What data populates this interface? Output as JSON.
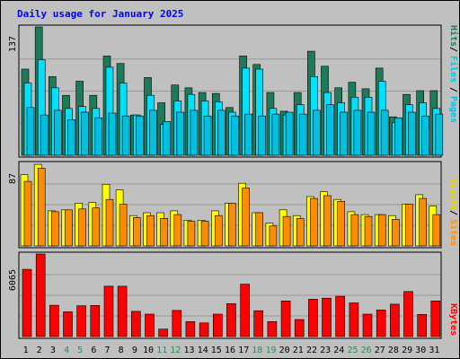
{
  "colors": {
    "background": "#c0c0c0",
    "panel_bg": "#c0c0c0",
    "title": "#0000ff",
    "hits": "#1e7b5a",
    "files": "#00e0ff",
    "pages": "#00c0e0",
    "visits": "#ffff00",
    "sites": "#ff8c00",
    "kbytes": "#ff0000",
    "weekend_label": "#2e8b57",
    "weekday_label": "#000000",
    "grid": "#999999"
  },
  "chart_data": [
    {
      "type": "bar",
      "title": "Daily usage for January 2025",
      "ylabel_parts": [
        "Pages",
        "Files",
        "Hits"
      ],
      "ymax_label": "137",
      "ylim": [
        0,
        137
      ],
      "categories": [
        "1",
        "2",
        "3",
        "4",
        "5",
        "6",
        "7",
        "8",
        "9",
        "10",
        "11",
        "12",
        "13",
        "14",
        "15",
        "16",
        "17",
        "18",
        "19",
        "20",
        "21",
        "22",
        "23",
        "24",
        "25",
        "26",
        "27",
        "28",
        "29",
        "30",
        "31"
      ],
      "weekend_days": [
        "4",
        "5",
        "11",
        "12",
        "18",
        "19",
        "25",
        "26"
      ],
      "series": [
        {
          "name": "Hits",
          "values": [
            92,
            137,
            84,
            64,
            79,
            64,
            106,
            98,
            43,
            83,
            56,
            75,
            72,
            67,
            66,
            51,
            106,
            97,
            67,
            47,
            67,
            111,
            95,
            72,
            78,
            71,
            93,
            41,
            65,
            69,
            69
          ]
        },
        {
          "name": "Files",
          "values": [
            77,
            102,
            72,
            50,
            52,
            50,
            94,
            77,
            43,
            64,
            33,
            58,
            65,
            58,
            57,
            46,
            93,
            92,
            50,
            43,
            54,
            84,
            67,
            56,
            62,
            62,
            79,
            35,
            54,
            56,
            50
          ]
        },
        {
          "name": "Pages",
          "values": [
            51,
            43,
            48,
            38,
            46,
            40,
            45,
            42,
            42,
            48,
            36,
            46,
            48,
            42,
            48,
            42,
            44,
            42,
            44,
            46,
            44,
            48,
            54,
            46,
            48,
            46,
            48,
            40,
            46,
            42,
            44
          ]
        }
      ]
    },
    {
      "type": "bar",
      "ylabel_parts": [
        "Sites",
        "Visits"
      ],
      "ymax_label": "87",
      "ylim": [
        0,
        87
      ],
      "series": [
        {
          "name": "Visits",
          "values": [
            75,
            86,
            37,
            38,
            45,
            46,
            65,
            59,
            32,
            35,
            35,
            37,
            27,
            27,
            37,
            45,
            66,
            35,
            24,
            38,
            32,
            52,
            57,
            49,
            36,
            33,
            33,
            32,
            44,
            54,
            42
          ]
        },
        {
          "name": "Sites",
          "values": [
            68,
            82,
            36,
            38,
            39,
            40,
            49,
            44,
            30,
            32,
            29,
            33,
            26,
            26,
            32,
            45,
            61,
            35,
            21,
            31,
            29,
            50,
            53,
            47,
            33,
            31,
            33,
            28,
            44,
            50,
            33
          ]
        }
      ]
    },
    {
      "type": "bar",
      "ylabel_parts": [
        "KBytes"
      ],
      "ymax_label": "6065",
      "ylim": [
        0,
        6065
      ],
      "series": [
        {
          "name": "KBytes",
          "values": [
            4940,
            6065,
            2300,
            1820,
            2270,
            2290,
            3700,
            3700,
            1850,
            1650,
            550,
            1920,
            1100,
            1000,
            1650,
            2420,
            3850,
            1900,
            1100,
            2620,
            1250,
            2740,
            2820,
            2960,
            2470,
            1650,
            1950,
            2380,
            3310,
            1630,
            2620
          ]
        }
      ]
    }
  ]
}
